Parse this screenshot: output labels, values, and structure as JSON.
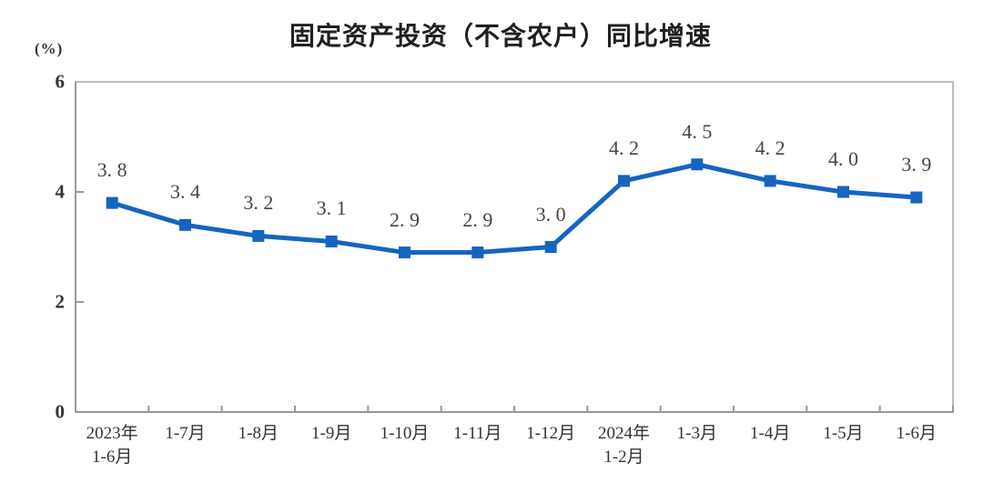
{
  "chart_data": {
    "type": "line",
    "title": "固定资产投资（不含农户）同比增速",
    "unit_label": "(%)",
    "categories": [
      "2023年\n1-6月",
      "1-7月",
      "1-8月",
      "1-9月",
      "1-10月",
      "1-11月",
      "1-12月",
      "2024年\n1-2月",
      "1-3月",
      "1-4月",
      "1-5月",
      "1-6月"
    ],
    "values": [
      3.8,
      3.4,
      3.2,
      3.1,
      2.9,
      2.9,
      3.0,
      4.2,
      4.5,
      4.2,
      4.0,
      3.9
    ],
    "point_labels": [
      "3. 8",
      "3. 4",
      "3. 2",
      "3. 1",
      "2. 9",
      "2. 9",
      "3. 0",
      "4. 2",
      "4. 5",
      "4. 2",
      "4. 0",
      "3. 9"
    ],
    "ylim": [
      0,
      6
    ],
    "yticks": [
      0,
      2,
      4,
      6
    ],
    "ytick_labels": [
      "0",
      "2",
      "4",
      "6"
    ],
    "grid": false,
    "legend": "none",
    "marker": "square",
    "colors": {
      "line": "#1565C0",
      "marker": "#1565C0",
      "point_label": "#454545",
      "axis_text": "#333333",
      "title": "#1f1f1f",
      "axis_line": "#999999",
      "plot_border": "#bdbdbd"
    }
  }
}
